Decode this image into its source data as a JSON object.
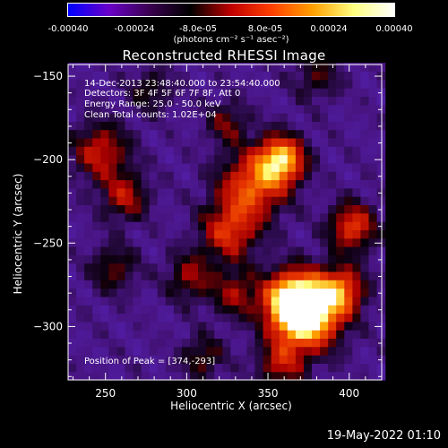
{
  "colorbar": {
    "ticks": [
      "-0.00040",
      "-0.00024",
      "-8.0e-05",
      "8.0e-05",
      "0.00024",
      "0.00040"
    ],
    "units": "(photons cm⁻² s⁻¹ asec⁻²)",
    "range": [
      -0.0004,
      0.0004
    ],
    "colors": [
      "#0000ff",
      "#6a00c8",
      "#3a0050",
      "#000000",
      "#c00000",
      "#ff4000",
      "#ffa000",
      "#ffff80",
      "#ffffff"
    ]
  },
  "chart_data": {
    "type": "heatmap",
    "title": "Reconstructed RHESSI Image",
    "xlabel": "Heliocentric X (arcsec)",
    "ylabel": "Heliocentric Y (arcsec)",
    "xlim": [
      227,
      420
    ],
    "ylim": [
      -332,
      -143
    ],
    "xticks": [
      250,
      300,
      350,
      400
    ],
    "yticks": [
      -150,
      -200,
      -250,
      -300
    ],
    "annotations": [
      "14-Dec-2013 23:48:40.000 to 23:54:40.000",
      "Detectors: 3F 4F 5F 6F 7F 8F, Att 0",
      "Energy Range: 25.0 - 50.0 keV",
      "Clean     Total counts: 1.02E+04"
    ],
    "peak_text": "Position of Peak = [374,-293]",
    "peak": [
      374,
      -293
    ],
    "sources": [
      {
        "x": 374,
        "y": -293,
        "amp": 1.0,
        "r": 14
      },
      {
        "x": 365,
        "y": -284,
        "amp": 0.8,
        "r": 12
      },
      {
        "x": 358,
        "y": -200,
        "amp": 0.85,
        "r": 10
      },
      {
        "x": 340,
        "y": -216,
        "amp": 0.6,
        "r": 14
      },
      {
        "x": 326,
        "y": -243,
        "amp": 0.5,
        "r": 12
      },
      {
        "x": 395,
        "y": -278,
        "amp": 0.6,
        "r": 10
      },
      {
        "x": 402,
        "y": -240,
        "amp": 0.55,
        "r": 10
      },
      {
        "x": 330,
        "y": -280,
        "amp": 0.35,
        "r": 10
      },
      {
        "x": 247,
        "y": -195,
        "amp": 0.45,
        "r": 12
      },
      {
        "x": 262,
        "y": -222,
        "amp": 0.4,
        "r": 10
      },
      {
        "x": 302,
        "y": -270,
        "amp": 0.35,
        "r": 10
      },
      {
        "x": 310,
        "y": -318,
        "amp": 0.3,
        "r": 9
      },
      {
        "x": 358,
        "y": -322,
        "amp": 0.4,
        "r": 10
      },
      {
        "x": 278,
        "y": -158,
        "amp": 0.25,
        "r": 9
      },
      {
        "x": 325,
        "y": -178,
        "amp": 0.3,
        "r": 9
      },
      {
        "x": 255,
        "y": -265,
        "amp": 0.3,
        "r": 10
      },
      {
        "x": 380,
        "y": -150,
        "amp": 0.25,
        "r": 10
      }
    ]
  },
  "footer": "19-May-2022 01:10"
}
